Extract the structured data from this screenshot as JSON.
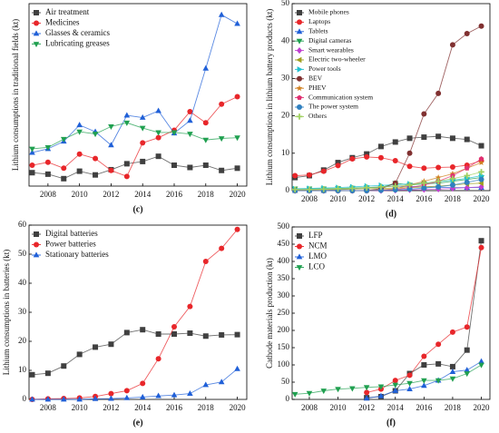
{
  "chart_data": [
    {
      "type": "line",
      "caption": "(c)",
      "ylabel": "Lithium consumptions in traditional fields (kt)",
      "legend": "upper left",
      "x": [
        2007,
        2008,
        2009,
        2010,
        2011,
        2012,
        2013,
        2014,
        2015,
        2016,
        2017,
        2018,
        2019,
        2020
      ],
      "xlim": [
        2006.8,
        2020.6
      ],
      "xticks": [
        2008,
        2010,
        2012,
        2014,
        2016,
        2018,
        2020
      ],
      "ylim": [
        0,
        24.5
      ],
      "series": [
        {
          "name": "Air treatment",
          "color": "#404040",
          "marker": "square",
          "values": [
            1.8,
            1.6,
            1.0,
            2.0,
            1.5,
            2.2,
            3.0,
            3.3,
            4.0,
            2.8,
            2.5,
            2.8,
            2.1,
            2.4
          ]
        },
        {
          "name": "Medicines",
          "color": "#e8262a",
          "marker": "circle",
          "values": [
            2.8,
            3.2,
            2.4,
            4.3,
            3.7,
            2.1,
            1.3,
            5.8,
            6.5,
            7.5,
            10.0,
            8.5,
            11.0,
            12.0
          ]
        },
        {
          "name": "Glasses & ceramics",
          "color": "#2060d8",
          "marker": "triangle",
          "values": [
            4.5,
            5.0,
            6.0,
            8.2,
            7.3,
            5.5,
            9.5,
            9.2,
            10.1,
            7.1,
            8.8,
            15.8,
            23.0,
            21.8
          ]
        },
        {
          "name": "Lubricating greases",
          "color": "#20a050",
          "marker": "triangle-down",
          "values": [
            5.0,
            5.2,
            6.3,
            7.3,
            7.0,
            8.0,
            8.5,
            7.8,
            7.2,
            7.2,
            7.0,
            6.2,
            6.4,
            6.5
          ]
        }
      ]
    },
    {
      "type": "line",
      "caption": "(d)",
      "ylabel": "Lithium consumptions in lithium battery products (kt)",
      "legend": "upper left",
      "x": [
        2007,
        2008,
        2009,
        2010,
        2011,
        2012,
        2013,
        2014,
        2015,
        2016,
        2017,
        2018,
        2019,
        2020
      ],
      "xlim": [
        2006.8,
        2020.6
      ],
      "xticks": [
        2008,
        2010,
        2012,
        2014,
        2016,
        2018,
        2020
      ],
      "ylim": [
        0,
        50
      ],
      "yticks": [
        0,
        10,
        20,
        30,
        40,
        50
      ],
      "series": [
        {
          "name": "Mobile phones",
          "color": "#404040",
          "marker": "square",
          "values": [
            3.5,
            4.0,
            5.5,
            7.5,
            8.8,
            9.8,
            11.8,
            13.0,
            14.0,
            14.3,
            14.5,
            14.0,
            13.7,
            12.0
          ]
        },
        {
          "name": "Laptops",
          "color": "#e8262a",
          "marker": "circle",
          "values": [
            4.0,
            4.2,
            5.2,
            6.7,
            8.5,
            9.0,
            8.8,
            8.0,
            6.5,
            6.0,
            6.2,
            6.3,
            6.8,
            8.0
          ]
        },
        {
          "name": "Tablets",
          "color": "#2060d8",
          "marker": "triangle",
          "values": [
            0,
            0,
            0,
            0.3,
            0.5,
            0.8,
            1.0,
            1.2,
            1.1,
            1.0,
            0.9,
            0.8,
            0.8,
            0.8
          ]
        },
        {
          "name": "Digital cameras",
          "color": "#20a050",
          "marker": "triangle-down",
          "values": [
            0.5,
            0.5,
            0.5,
            0.6,
            0.7,
            0.8,
            0.8,
            2.0,
            1.5,
            1.8,
            2.0,
            2.5,
            3.0,
            3.5
          ]
        },
        {
          "name": "Smart wearables",
          "color": "#c040d0",
          "marker": "diamond",
          "values": [
            0,
            0,
            0,
            0,
            0,
            0,
            0,
            0.1,
            0.2,
            0.3,
            0.4,
            0.6,
            0.8,
            1.0
          ]
        },
        {
          "name": "Electric two-wheeler",
          "color": "#a0a020",
          "marker": "triangle-left",
          "values": [
            0.2,
            0.2,
            0.3,
            0.3,
            0.4,
            0.5,
            0.6,
            0.7,
            0.8,
            1.0,
            1.2,
            1.5,
            1.8,
            2.0
          ]
        },
        {
          "name": "Power tools",
          "color": "#20c0d0",
          "marker": "triangle-right",
          "values": [
            0.5,
            0.6,
            0.7,
            0.8,
            1.0,
            1.2,
            1.4,
            1.6,
            1.8,
            2.0,
            2.4,
            2.8,
            3.3,
            4.0
          ]
        },
        {
          "name": "BEV",
          "color": "#803030",
          "marker": "circle",
          "values": [
            0,
            0,
            0,
            0,
            0,
            0,
            0.5,
            2.0,
            10.0,
            20.5,
            26.0,
            39.0,
            42.0,
            44.0
          ]
        },
        {
          "name": "PHEV",
          "color": "#d08020",
          "marker": "star",
          "values": [
            0,
            0,
            0,
            0,
            0,
            0,
            0.2,
            0.5,
            1.5,
            2.5,
            3.5,
            4.5,
            6.0,
            7.5
          ]
        },
        {
          "name": "Communication system",
          "color": "#e03070",
          "marker": "pentagon",
          "values": [
            0,
            0,
            0,
            0,
            0,
            0,
            0.1,
            0.3,
            0.8,
            1.5,
            2.5,
            4.0,
            6.0,
            8.5
          ]
        },
        {
          "name": "The power system",
          "color": "#3080c0",
          "marker": "circle",
          "values": [
            0,
            0,
            0,
            0,
            0,
            0,
            0.1,
            0.2,
            0.4,
            0.7,
            1.0,
            1.5,
            2.2,
            3.0
          ]
        },
        {
          "name": "Others",
          "color": "#a0d060",
          "marker": "plus",
          "values": [
            0.3,
            0.3,
            0.4,
            0.5,
            0.6,
            0.8,
            1.0,
            1.2,
            1.5,
            2.0,
            2.5,
            3.2,
            4.0,
            5.0
          ]
        }
      ]
    },
    {
      "type": "line",
      "caption": "(e)",
      "ylabel": "Lithium consumptions in  batteries (kt)",
      "legend": "upper left",
      "x": [
        2007,
        2008,
        2009,
        2010,
        2011,
        2012,
        2013,
        2014,
        2015,
        2016,
        2017,
        2018,
        2019,
        2020
      ],
      "xlim": [
        2006.8,
        2020.6
      ],
      "xticks": [
        2008,
        2010,
        2012,
        2014,
        2016,
        2018,
        2020
      ],
      "ylim": [
        0,
        60
      ],
      "yticks": [
        0,
        10,
        20,
        30,
        40,
        50,
        60
      ],
      "series": [
        {
          "name": "Digital batteries",
          "color": "#404040",
          "marker": "square",
          "values": [
            8.5,
            9.0,
            11.5,
            15.5,
            18.0,
            19.0,
            23.0,
            24.0,
            22.5,
            22.5,
            22.8,
            21.8,
            22.2,
            22.3
          ]
        },
        {
          "name": "Power batteries",
          "color": "#e8262a",
          "marker": "circle",
          "values": [
            0,
            0.2,
            0.3,
            0.5,
            1.0,
            2.0,
            3.0,
            5.5,
            14.0,
            25.0,
            32.0,
            47.5,
            52.0,
            58.5
          ]
        },
        {
          "name": "Stationary batteries",
          "color": "#2060d8",
          "marker": "triangle",
          "values": [
            0,
            0,
            0,
            0,
            0.2,
            0.3,
            0.5,
            0.8,
            1.2,
            1.5,
            2.0,
            5.0,
            6.0,
            10.5
          ]
        }
      ]
    },
    {
      "type": "line",
      "caption": "(f)",
      "ylabel": "Cathode materials production (kt)",
      "legend": "upper left",
      "x": [
        2007,
        2008,
        2009,
        2010,
        2011,
        2012,
        2013,
        2014,
        2015,
        2016,
        2017,
        2018,
        2019,
        2020
      ],
      "xlim": [
        2006.8,
        2020.6
      ],
      "xticks": [
        2008,
        2010,
        2012,
        2014,
        2016,
        2018,
        2020
      ],
      "ylim": [
        0,
        500
      ],
      "yticks": [
        0,
        50,
        100,
        150,
        200,
        250,
        300,
        350,
        400,
        450,
        500
      ],
      "series": [
        {
          "name": "LFP",
          "color": "#404040",
          "marker": "square",
          "values": [
            null,
            null,
            null,
            null,
            null,
            5,
            8,
            25,
            75,
            100,
            103,
            95,
            143,
            460
          ]
        },
        {
          "name": "NCM",
          "color": "#e8262a",
          "marker": "circle",
          "values": [
            null,
            null,
            null,
            null,
            null,
            20,
            30,
            55,
            70,
            125,
            160,
            195,
            210,
            440
          ]
        },
        {
          "name": "LMO",
          "color": "#2060d8",
          "marker": "triangle",
          "values": [
            null,
            null,
            null,
            null,
            null,
            3,
            10,
            25,
            30,
            40,
            55,
            80,
            85,
            110
          ]
        },
        {
          "name": "LCO",
          "color": "#20a050",
          "marker": "triangle-down",
          "values": [
            15,
            18,
            25,
            30,
            32,
            35,
            37,
            42,
            47,
            55,
            55,
            60,
            75,
            100
          ]
        }
      ]
    }
  ]
}
